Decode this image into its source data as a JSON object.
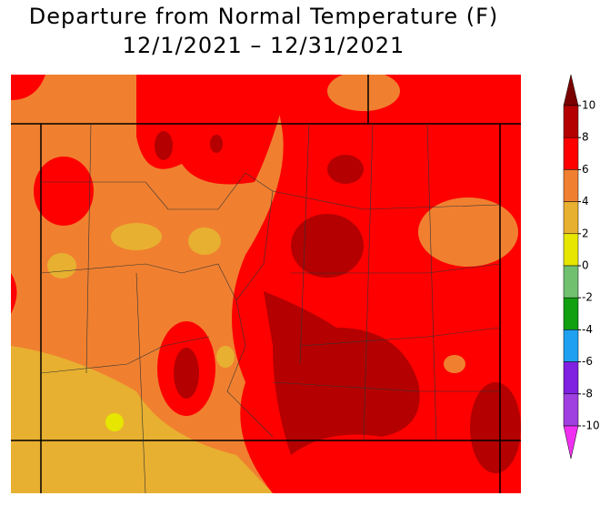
{
  "header": {
    "title": "Departure from Normal Temperature (F)",
    "subtitle": "12/1/2021 – 12/31/2021"
  },
  "legend": {
    "ticks": [
      10,
      8,
      6,
      4,
      2,
      0,
      -2,
      -4,
      -6,
      -8,
      -10
    ],
    "colors": [
      "#7a0000",
      "#b40000",
      "#ff0000",
      "#f08030",
      "#e8b030",
      "#e6e600",
      "#70c070",
      "#10a010",
      "#20a0f0",
      "#8020e0",
      "#a040e0",
      "#f030f0"
    ]
  }
}
